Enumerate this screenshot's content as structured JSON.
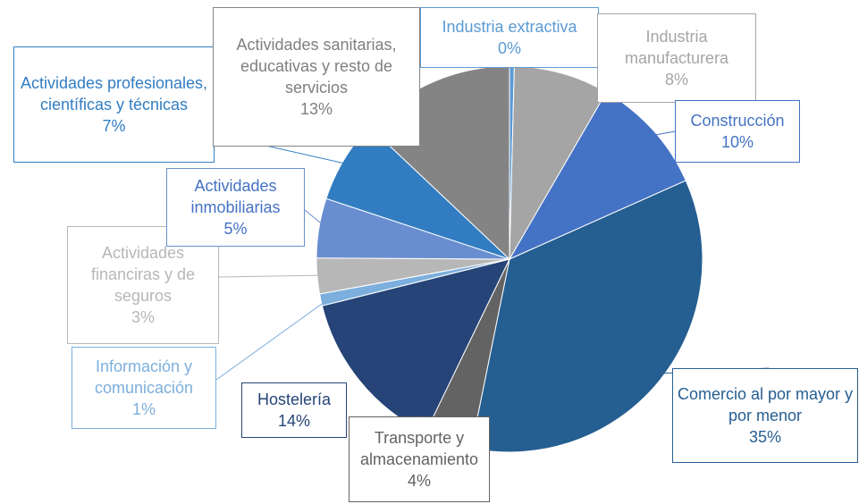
{
  "chart_data": {
    "type": "pie",
    "categories": [
      "Industria extractiva",
      "Industria manufacturera",
      "Construcción",
      "Comercio al por mayor y por menor",
      "Transporte y almacenamiento",
      "Hostelería",
      "Información y comunicación",
      "Actividades financiras y de seguros",
      "Actividades inmobiliarias",
      "Actividades profesionales, científicas y técnicas",
      "Actividades sanitarias, educativas y resto de servicios"
    ],
    "values": [
      0.4,
      8,
      10,
      35,
      4,
      14,
      1,
      3,
      5,
      7,
      13
    ],
    "value_labels": [
      "0%",
      "8%",
      "10%",
      "35%",
      "4%",
      "14%",
      "1%",
      "3%",
      "5%",
      "7%",
      "13%"
    ],
    "colors": [
      "#5b9bd5",
      "#a5a5a5",
      "#4472c4",
      "#255e91",
      "#636363",
      "#264478",
      "#7cafdd",
      "#b7b7b7",
      "#698ed0",
      "#327dc2",
      "#848484"
    ]
  }
}
